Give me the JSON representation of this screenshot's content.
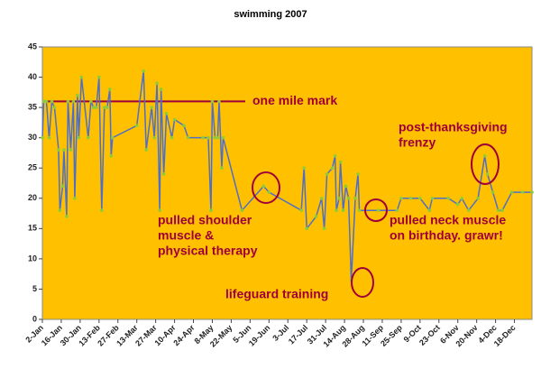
{
  "chart_data": {
    "type": "line",
    "title": "swimming 2007",
    "x": [
      "2-Jan",
      "3-Jan",
      "5-Jan",
      "7-Jan",
      "9-Jan",
      "11-Jan",
      "14-Jan",
      "15-Jan",
      "17-Jan",
      "18-Jan",
      "20-Jan",
      "21-Jan",
      "23-Jan",
      "25-Jan",
      "26-Jan",
      "28-Jan",
      "29-Jan",
      "31-Jan",
      "5-Feb",
      "7-Feb",
      "9-Feb",
      "11-Feb",
      "13-Feb",
      "15-Feb",
      "17-Feb",
      "19-Feb",
      "21-Feb",
      "22-Feb",
      "23-Feb",
      "13-Mar",
      "18-Mar",
      "20-Mar",
      "24-Mar",
      "26-Mar",
      "28-Mar",
      "30-Mar",
      "31-Mar",
      "2-Apr",
      "4-Apr",
      "8-Apr",
      "10-Apr",
      "17-Apr",
      "20-Apr",
      "1-May",
      "5-May",
      "7-May",
      "8-May",
      "10-May",
      "12-May",
      "13-May",
      "15-May",
      "16-May",
      "30-May",
      "15-Jun",
      "19-Jun",
      "13-Jul",
      "15-Jul",
      "17-Jul",
      "24-Jul",
      "28-Jul",
      "30-Jul",
      "1-Aug",
      "5-Aug",
      "7-Aug",
      "8-Aug",
      "10-Aug",
      "11-Aug",
      "13-Aug",
      "15-Aug",
      "17-Aug",
      "19-Aug",
      "22-Aug",
      "24-Aug",
      "25-Aug",
      "8-Sep",
      "22-Sep",
      "25-Sep",
      "2-Oct",
      "9-Oct",
      "16-Oct",
      "18-Oct",
      "30-Oct",
      "6-Nov",
      "9-Nov",
      "14-Nov",
      "21-Nov",
      "26-Nov",
      "28-Nov",
      "2-Dec",
      "6-Dec",
      "9-Dec",
      "16-Dec",
      "24-Dec",
      "31-Dec"
    ],
    "series": [
      {
        "color": "#4f6fc6",
        "marker_color": "#8ccc3c",
        "values": [
          30,
          36,
          36,
          30,
          36,
          35,
          28,
          18,
          22,
          28,
          17,
          36,
          28,
          36,
          20,
          37,
          30,
          40,
          30,
          36,
          35,
          35,
          40,
          18,
          35,
          35,
          38,
          27,
          30,
          32,
          41,
          28,
          35,
          30,
          39,
          18,
          38,
          24,
          34,
          30,
          33,
          32,
          30,
          30,
          30,
          18,
          36,
          30,
          30,
          36,
          25,
          30,
          18,
          22,
          21,
          18,
          25,
          15,
          17,
          20,
          15,
          24,
          25,
          27,
          18,
          20,
          26,
          18,
          22,
          20,
          6.5,
          20,
          24,
          18,
          18,
          18,
          20,
          20,
          20,
          18,
          20,
          20,
          19,
          20,
          18,
          20,
          27,
          24,
          21,
          18,
          18,
          21,
          21,
          21
        ]
      }
    ],
    "xlim": [
      "2-Jan",
      "31-Dec"
    ],
    "xticks": [
      "2-Jan",
      "16-Jan",
      "30-Jan",
      "13-Feb",
      "27-Feb",
      "13-Mar",
      "27-Mar",
      "10-Apr",
      "24-Apr",
      "8-May",
      "22-May",
      "5-Jun",
      "19-Jun",
      "3-Jul",
      "17-Jul",
      "31-Jul",
      "14-Aug",
      "28-Aug",
      "11-Sep",
      "25-Sep",
      "9-Oct",
      "23-Oct",
      "6-Nov",
      "20-Nov",
      "4-Dec",
      "18-Dec"
    ],
    "ylim": [
      0,
      45
    ],
    "yticks": [
      0,
      5,
      10,
      15,
      20,
      25,
      30,
      35,
      40,
      45
    ],
    "background": "#ffc000",
    "reference_line": {
      "value": 36,
      "color": "#a0003a",
      "label": "one mile mark"
    },
    "annotations": [
      {
        "lines": [
          "pulled shoulder",
          "muscle &",
          "physical therapy"
        ]
      },
      {
        "lines": [
          "lifeguard training"
        ]
      },
      {
        "lines": [
          "pulled neck muscle",
          "on birthday. grawr!"
        ]
      },
      {
        "lines": [
          "post-thanksgiving",
          "frenzy"
        ]
      }
    ]
  }
}
